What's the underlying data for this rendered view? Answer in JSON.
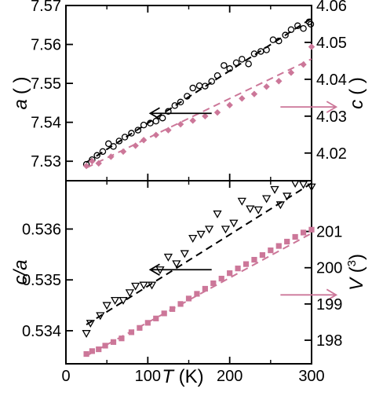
{
  "chart_data": [
    {
      "type": "scatter",
      "panel": "top",
      "title": "",
      "x": {
        "label_italic": "T",
        "label_rest": " (K)",
        "range": [
          0,
          300
        ],
        "ticks": [
          0,
          100,
          200,
          300
        ],
        "tick_labels_shown": false
      },
      "y_left": {
        "label": "a",
        "unit": "( )",
        "range": [
          7.525,
          7.57
        ],
        "ticks": [
          7.53,
          7.54,
          7.55,
          7.56,
          7.57
        ],
        "tick_labels": [
          "7.53",
          "7.54",
          "7.55",
          "7.56",
          "7.57"
        ]
      },
      "y_right": {
        "label": "c",
        "unit": "( )",
        "range": [
          4.0125,
          4.06
        ],
        "ticks": [
          4.02,
          4.03,
          4.04,
          4.05,
          4.06
        ],
        "tick_labels": [
          "4.02",
          "4.03",
          "4.04",
          "4.05",
          "4.06"
        ]
      },
      "series": [
        {
          "axis": "left",
          "marker": "open-circle",
          "color": "#000000",
          "x": [
            25,
            32,
            38,
            45,
            52,
            58,
            65,
            72,
            80,
            88,
            95,
            103,
            110,
            118,
            125,
            133,
            140,
            148,
            155,
            163,
            170,
            178,
            185,
            193,
            200,
            208,
            215,
            223,
            230,
            238,
            245,
            253,
            260,
            268,
            275,
            283,
            290,
            297,
            299
          ],
          "y": [
            7.5292,
            7.5304,
            7.5315,
            7.5325,
            7.5345,
            7.5338,
            7.5352,
            7.5362,
            7.5372,
            7.538,
            7.5393,
            7.5398,
            7.5403,
            7.5411,
            7.5428,
            7.5443,
            7.5452,
            7.5467,
            7.5488,
            7.5494,
            7.5493,
            7.5505,
            7.552,
            7.5546,
            7.5538,
            7.5553,
            7.5562,
            7.555,
            7.5576,
            7.5582,
            7.5586,
            7.5612,
            7.5609,
            7.5624,
            7.5638,
            7.5648,
            7.5641,
            7.5658,
            7.5652
          ]
        },
        {
          "axis": "right",
          "marker": "filled-diamond",
          "color": "#cc7799",
          "x": [
            25,
            32,
            40,
            55,
            70,
            85,
            95,
            110,
            125,
            140,
            155,
            170,
            185,
            200,
            215,
            230,
            245,
            260,
            275,
            290,
            300
          ],
          "y": [
            4.0165,
            4.0178,
            4.0172,
            4.019,
            4.0204,
            4.022,
            4.0235,
            4.0249,
            4.0262,
            4.0278,
            4.0288,
            4.03,
            4.031,
            4.033,
            4.0348,
            4.036,
            4.038,
            4.0395,
            4.0418,
            4.044,
            4.0488
          ]
        }
      ],
      "fit_lines": [
        {
          "axis": "left",
          "color": "#000000",
          "style": "dashed",
          "x": [
            25,
            300
          ],
          "y": [
            7.5297,
            7.5667
          ]
        },
        {
          "axis": "right",
          "color": "#cc7799",
          "style": "dashed",
          "x": [
            25,
            300
          ],
          "y": [
            4.016,
            4.0455
          ]
        }
      ],
      "arrows": [
        {
          "points_to": "left-axis",
          "color": "#000000",
          "from": [
            178,
            7.5423
          ],
          "to": [
            103,
            7.5423
          ]
        },
        {
          "points_to": "right-axis",
          "color": "#cc7799",
          "from": [
            262,
            4.0325
          ],
          "to": [
            330,
            4.0325
          ]
        }
      ]
    },
    {
      "type": "scatter",
      "panel": "bottom",
      "title": "",
      "x": {
        "label_italic": "T",
        "label_rest": " (K)",
        "range": [
          0,
          300
        ],
        "ticks": [
          0,
          100,
          200,
          300
        ],
        "tick_labels": [
          "0",
          "100",
          "200",
          "300"
        ]
      },
      "y_left": {
        "label": "c/a",
        "range": [
          0.53335,
          0.53695
        ],
        "ticks": [
          0.534,
          0.535,
          0.536
        ],
        "tick_labels": [
          "0.534",
          "0.535",
          "0.536"
        ]
      },
      "y_right": {
        "label_italic": "V",
        "unit_open": " (",
        "unit_sup": "3",
        "unit_close": ")",
        "range": [
          197.35,
          202.4
        ],
        "ticks": [
          198,
          199,
          200,
          201
        ],
        "tick_labels": [
          "198",
          "199",
          "200",
          "201"
        ]
      },
      "series": [
        {
          "axis": "left",
          "marker": "open-triangle-down",
          "color": "#000000",
          "x": [
            25,
            30,
            42,
            50,
            60,
            70,
            78,
            85,
            95,
            105,
            115,
            125,
            135,
            145,
            155,
            165,
            175,
            185,
            195,
            205,
            215,
            225,
            235,
            245,
            255,
            262,
            270,
            280,
            290,
            300
          ],
          "y": [
            0.53395,
            0.53415,
            0.5343,
            0.5345,
            0.5346,
            0.5346,
            0.53475,
            0.53488,
            0.5349,
            0.5349,
            0.5352,
            0.53545,
            0.53532,
            0.53552,
            0.53582,
            0.5359,
            0.536,
            0.5363,
            0.536,
            0.53612,
            0.53655,
            0.5364,
            0.53638,
            0.5366,
            0.53678,
            0.53648,
            0.53665,
            0.5369,
            0.53688,
            0.53683
          ]
        },
        {
          "axis": "right",
          "marker": "filled-square",
          "color": "#cc7799",
          "x": [
            25,
            32,
            40,
            48,
            58,
            68,
            80,
            90,
            100,
            110,
            120,
            130,
            140,
            150,
            160,
            170,
            180,
            190,
            200,
            210,
            220,
            230,
            240,
            250,
            260,
            270,
            280,
            290,
            300
          ],
          "y": [
            197.62,
            197.7,
            197.75,
            197.85,
            197.95,
            198.05,
            198.22,
            198.34,
            198.48,
            198.6,
            198.74,
            198.86,
            199.0,
            199.15,
            199.28,
            199.42,
            199.57,
            199.7,
            199.85,
            199.98,
            200.1,
            200.22,
            200.35,
            200.48,
            200.6,
            200.72,
            200.85,
            200.97,
            201.05
          ]
        }
      ],
      "fit_lines": [
        {
          "axis": "left",
          "color": "#000000",
          "style": "dashed",
          "x": [
            25,
            300
          ],
          "y": [
            0.53412,
            0.5369
          ]
        },
        {
          "axis": "right",
          "color": "#cc7799",
          "style": "dashed",
          "x": [
            25,
            300
          ],
          "y": [
            197.57,
            200.95
          ]
        }
      ],
      "arrows": [
        {
          "points_to": "left-axis",
          "color": "#000000",
          "from": [
            178,
            0.5352
          ],
          "to": [
            103,
            0.5352
          ]
        },
        {
          "points_to": "right-axis",
          "color": "#cc7799",
          "from": [
            262,
            199.25
          ],
          "to": [
            330,
            199.25
          ]
        }
      ]
    }
  ],
  "colors": {
    "series_black": "#000000",
    "series_pink": "#cc7799",
    "axes": "#000000"
  }
}
